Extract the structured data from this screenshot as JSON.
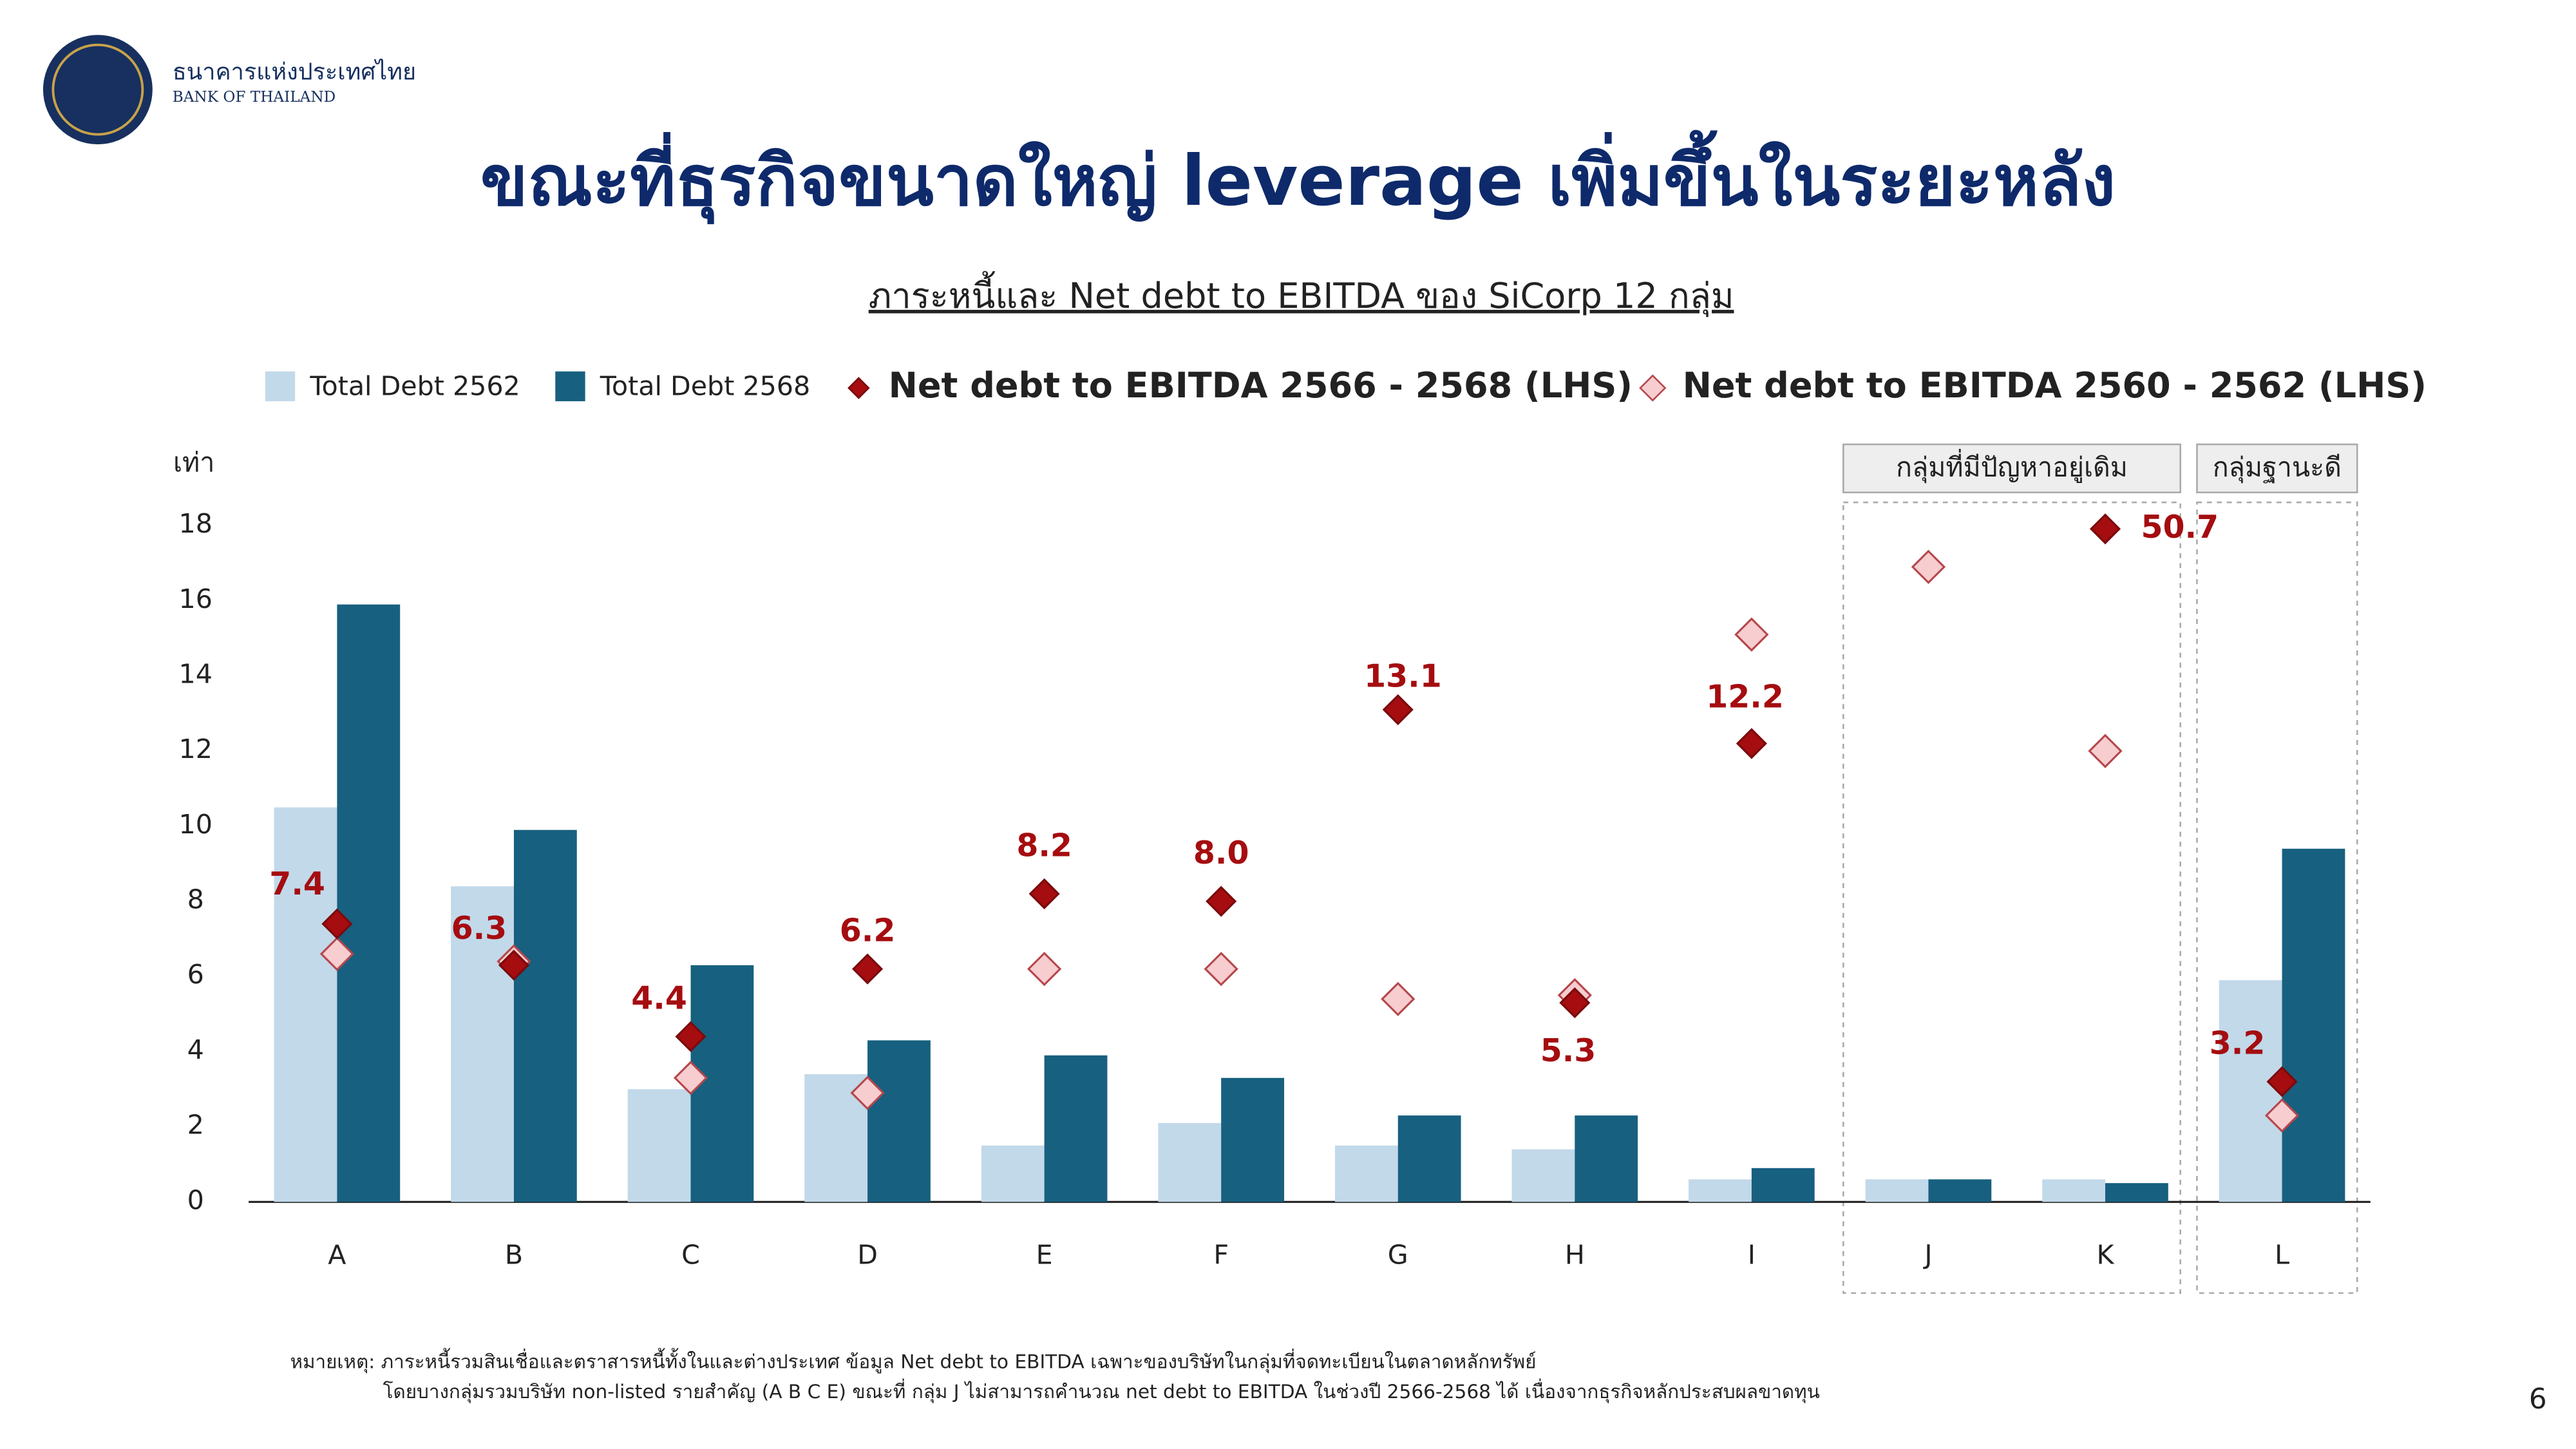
{
  "header": {
    "org_th": "ธนาคารแห่งประเทศไทย",
    "org_en": "BANK OF THAILAND"
  },
  "title": "ขณะที่ธุรกิจขนาดใหญ่ leverage เพิ่มขึ้นในระยะหลัง",
  "notes": [
    "หมายเหตุ: ภาระหนี้รวมสินเชื่อและตราสารหนี้ทั้งในและต่างประเทศ ข้อมูล Net debt to EBITDA เฉพาะของบริษัทในกลุ่มที่จดทะเบียนในตลาดหลักทรัพย์",
    "โดยบางกลุ่มรวมบริษัท non-listed รายสำคัญ (A B C E) ขณะที่ กลุ่ม J ไม่สามารถคำนวณ net debt to EBITDA ในช่วงปี 2566-2568 ได้ เนื่องจากธุรกิจหลักประสบผลขาดทุน"
  ],
  "page_number": "6",
  "chart_data": {
    "type": "bar",
    "subtitle": "ภาระหนี้และ Net debt to EBITDA ของ SiCorp 12 กลุ่ม",
    "y_label": "เท่า",
    "categories": [
      "A",
      "B",
      "C",
      "D",
      "E",
      "F",
      "G",
      "H",
      "I",
      "J",
      "K",
      "L"
    ],
    "series": [
      {
        "name": "Total Debt 2562",
        "type": "bar",
        "color": "#c2d9ea",
        "values": [
          10.5,
          8.4,
          3.0,
          3.4,
          1.5,
          2.1,
          1.5,
          1.4,
          0.6,
          0.6,
          0.6,
          5.9
        ]
      },
      {
        "name": "Total Debt 2568",
        "type": "bar",
        "color": "#17607f",
        "values": [
          15.9,
          9.9,
          6.3,
          4.3,
          3.9,
          3.3,
          2.3,
          2.3,
          0.9,
          0.6,
          0.5,
          9.4
        ]
      },
      {
        "name": "Net debt to EBITDA 2566 - 2568 (LHS)",
        "type": "scatter",
        "color": "#a50d10",
        "edgecolor": "#7a0a0c",
        "values": [
          7.4,
          6.3,
          4.4,
          6.2,
          8.2,
          8.0,
          13.1,
          5.3,
          12.2,
          null,
          50.7,
          3.2
        ],
        "value_labels": [
          "7.4",
          "6.3",
          "4.4",
          "6.2",
          "8.2",
          "8.0",
          "13.1",
          "5.3",
          "12.2",
          null,
          "50.7",
          "3.2"
        ]
      },
      {
        "name": "Net debt to EBITDA 2560 - 2562 (LHS)",
        "type": "scatter",
        "color": "#f7cdd0",
        "edgecolor": "#b5474b",
        "values": [
          6.6,
          6.4,
          3.3,
          2.9,
          6.2,
          6.2,
          5.4,
          5.5,
          15.1,
          16.9,
          12.0,
          2.3
        ]
      }
    ],
    "ylim": [
      0,
      18
    ],
    "yticks": [
      0,
      2,
      4,
      6,
      8,
      10,
      12,
      14,
      16,
      18
    ],
    "groups": [
      {
        "label": "กลุ่มที่มีปัญหาอยู่เดิม",
        "categories": [
          "J",
          "K"
        ]
      },
      {
        "label": "กลุ่มฐานะดี",
        "categories": [
          "L"
        ]
      }
    ]
  }
}
